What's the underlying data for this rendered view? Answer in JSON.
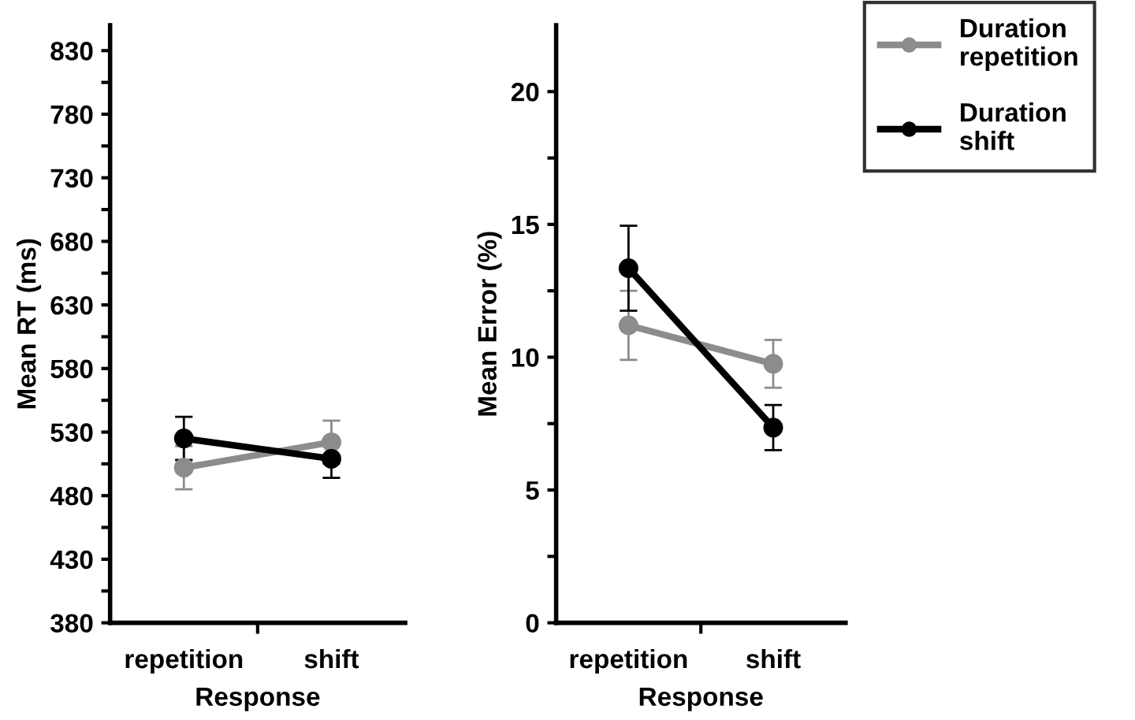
{
  "chart_data": [
    {
      "type": "line",
      "xlabel": "Response",
      "ylabel": "Mean RT (ms)",
      "categories": [
        "repetition",
        "shift"
      ],
      "ylim": [
        380,
        850
      ],
      "yticks": [
        380,
        {
          "value": 405,
          "label": null
        },
        430,
        {
          "value": 455,
          "label": null
        },
        480,
        {
          "value": 505,
          "label": null
        },
        530,
        {
          "value": 555,
          "label": null
        },
        580,
        {
          "value": 605,
          "label": null
        },
        630,
        {
          "value": 655,
          "label": null
        },
        680,
        {
          "value": 705,
          "label": null
        },
        730,
        {
          "value": 755,
          "label": null
        },
        780,
        {
          "value": 805,
          "label": null
        },
        830
      ],
      "series": [
        {
          "color": "#8c8c8c",
          "values": [
            502,
            522
          ],
          "errors": [
            17,
            17
          ]
        },
        {
          "color": "#000000",
          "values": [
            525,
            509
          ],
          "errors": [
            17,
            15
          ]
        }
      ],
      "marker": "circle",
      "line_style": "solid",
      "grid": false,
      "legend": false
    },
    {
      "type": "line",
      "xlabel": "Response",
      "ylabel": "Mean Error (%)",
      "categories": [
        "repetition",
        "shift"
      ],
      "ylim": [
        0,
        22.5
      ],
      "yticks": [
        0,
        {
          "value": 2.5,
          "label": null
        },
        5,
        {
          "value": 7.5,
          "label": null
        },
        10,
        {
          "value": 12.5,
          "label": null
        },
        15,
        {
          "value": 17.5,
          "label": null
        },
        20
      ],
      "series": [
        {
          "name": "Duration repetition",
          "color": "#8c8c8c",
          "values": [
            11.2,
            9.75
          ],
          "errors": [
            1.3,
            0.9
          ]
        },
        {
          "name": "Duration shift",
          "color": "#000000",
          "values": [
            13.35,
            7.35
          ],
          "errors": [
            1.6,
            0.85
          ]
        }
      ],
      "marker": "circle",
      "line_style": "solid",
      "grid": false,
      "legend": "top right"
    }
  ]
}
